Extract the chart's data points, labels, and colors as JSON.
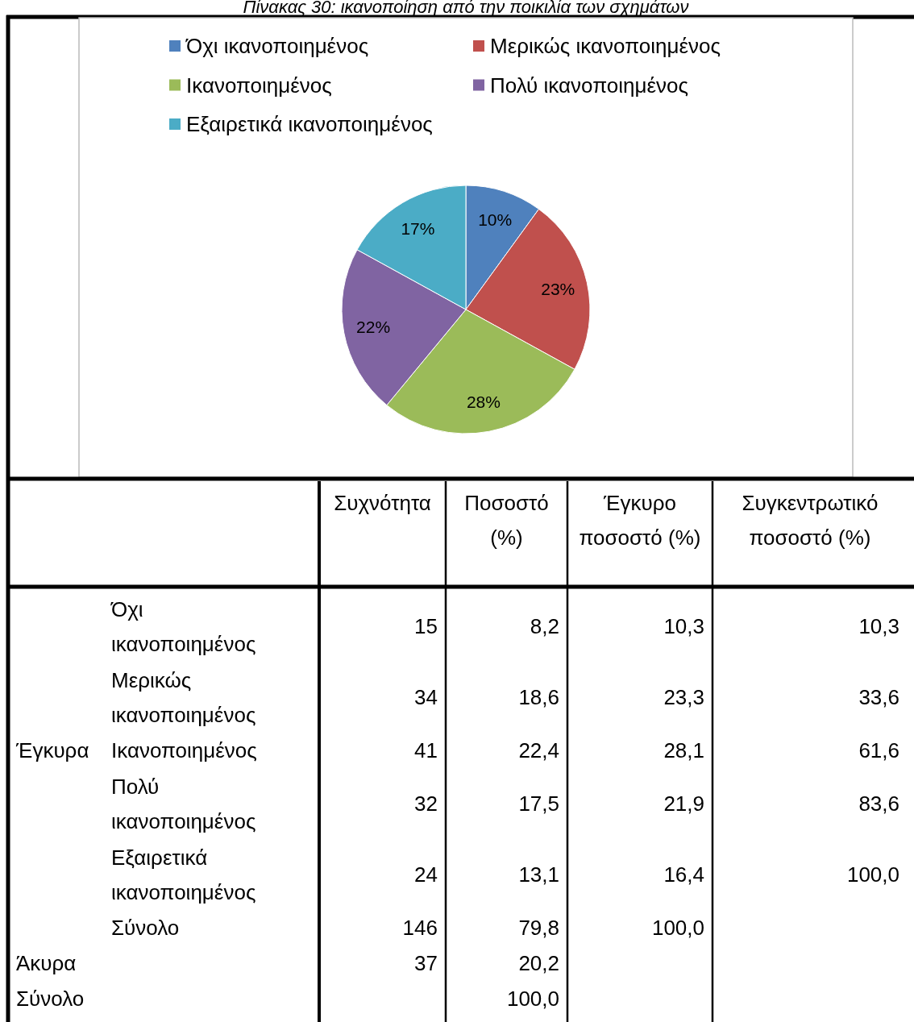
{
  "chart_data": [
    {
      "type": "pie",
      "title": "Πίνακας 30: ικανοποίηση από την ποικιλία των σχημάτων",
      "categories": [
        "Όχι ικανοποιημένος",
        "Μερικώς ικανοποιημένος",
        "Ικανοποιημένος",
        "Πολύ ικανοποιημένος",
        "Εξαιρετικά ικανοποιημένος"
      ],
      "values": [
        10,
        23,
        28,
        22,
        17
      ],
      "colors": [
        "#4f81bd",
        "#c0504d",
        "#9bbb59",
        "#8064a2",
        "#4bacc6"
      ],
      "value_labels": [
        "10%",
        "23%",
        "28%",
        "22%",
        "17%"
      ],
      "legend": "top"
    },
    {
      "type": "other",
      "categories": [
        null,
        "Συχνότητα",
        "Ποσοστό (%)",
        "Έγκυρο ποσοστό (%)",
        "Συγκεντρωτικό ποσοστό (%)"
      ],
      "y_categories": [
        null,
        null,
        "Έγκυρα",
        null,
        null,
        null,
        "Άκυρα",
        "Σύνολο"
      ],
      "y2_categories": [
        "Όχι ικανοποιημένος",
        "Μερικώς ικανοποιημένος",
        "Ικανοποιημένος",
        "Πολύ ικανοποιημένος",
        "Εξαιρετικά ικανοποιημένος",
        "Σύνολο",
        null,
        null
      ],
      "cell_labels": [
        [
          "15",
          "8,2",
          "10,3",
          "10,3"
        ],
        [
          "34",
          "18,6",
          "23,3",
          "33,6"
        ],
        [
          "41",
          "22,4",
          "28,1",
          "61,6"
        ],
        [
          "32",
          "17,5",
          "21,9",
          "83,6"
        ],
        [
          "24",
          "13,1",
          "16,4",
          "100,0"
        ],
        [
          "146",
          "79,8",
          "100,0",
          null
        ],
        [
          "37",
          "20,2",
          null,
          null
        ],
        [
          null,
          "100,0",
          null,
          null
        ]
      ]
    }
  ]
}
